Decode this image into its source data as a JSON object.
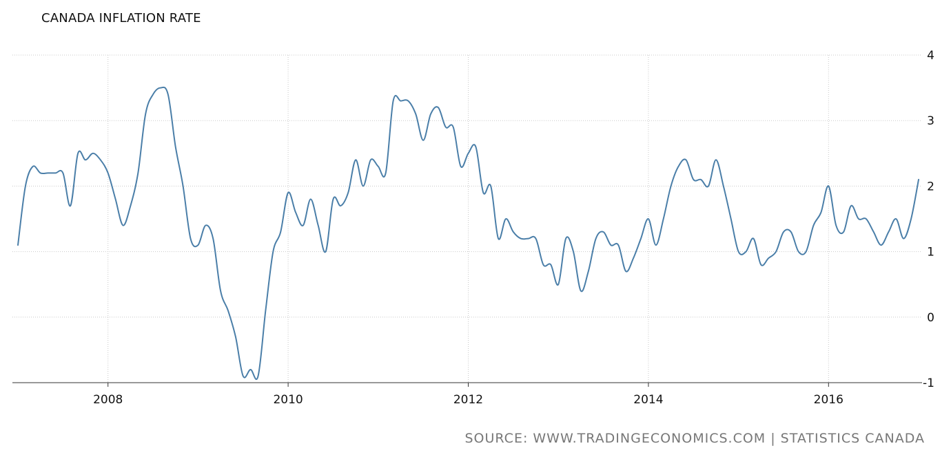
{
  "header": {
    "title": "CANADA INFLATION RATE"
  },
  "footer": {
    "source": "SOURCE: WWW.TRADINGECONOMICS.COM | STATISTICS CANADA"
  },
  "colors": {
    "line": "#4a7ea8",
    "grid": "#c8c8c8",
    "text": "#111111",
    "source": "#777777"
  },
  "chart_data": {
    "type": "line",
    "title": "CANADA INFLATION RATE",
    "xlabel": "",
    "ylabel": "",
    "x_ticks": [
      "2008",
      "2010",
      "2012",
      "2014",
      "2016"
    ],
    "y_ticks": [
      "4",
      "3",
      "2",
      "1",
      "0",
      "-1"
    ],
    "ylim": [
      -1,
      4
    ],
    "xlim": [
      "2007-01",
      "2017-01"
    ],
    "grid": true,
    "series": [
      {
        "name": "",
        "x": [
          "2007-01",
          "2007-02",
          "2007-03",
          "2007-04",
          "2007-05",
          "2007-06",
          "2007-07",
          "2007-08",
          "2007-09",
          "2007-10",
          "2007-11",
          "2007-12",
          "2008-01",
          "2008-02",
          "2008-03",
          "2008-04",
          "2008-05",
          "2008-06",
          "2008-07",
          "2008-08",
          "2008-09",
          "2008-10",
          "2008-11",
          "2008-12",
          "2009-01",
          "2009-02",
          "2009-03",
          "2009-04",
          "2009-05",
          "2009-06",
          "2009-07",
          "2009-08",
          "2009-09",
          "2009-10",
          "2009-11",
          "2009-12",
          "2010-01",
          "2010-02",
          "2010-03",
          "2010-04",
          "2010-05",
          "2010-06",
          "2010-07",
          "2010-08",
          "2010-09",
          "2010-10",
          "2010-11",
          "2010-12",
          "2011-01",
          "2011-02",
          "2011-03",
          "2011-04",
          "2011-05",
          "2011-06",
          "2011-07",
          "2011-08",
          "2011-09",
          "2011-10",
          "2011-11",
          "2011-12",
          "2012-01",
          "2012-02",
          "2012-03",
          "2012-04",
          "2012-05",
          "2012-06",
          "2012-07",
          "2012-08",
          "2012-09",
          "2012-10",
          "2012-11",
          "2012-12",
          "2013-01",
          "2013-02",
          "2013-03",
          "2013-04",
          "2013-05",
          "2013-06",
          "2013-07",
          "2013-08",
          "2013-09",
          "2013-10",
          "2013-11",
          "2013-12",
          "2014-01",
          "2014-02",
          "2014-03",
          "2014-04",
          "2014-05",
          "2014-06",
          "2014-07",
          "2014-08",
          "2014-09",
          "2014-10",
          "2014-11",
          "2014-12",
          "2015-01",
          "2015-02",
          "2015-03",
          "2015-04",
          "2015-05",
          "2015-06",
          "2015-07",
          "2015-08",
          "2015-09",
          "2015-10",
          "2015-11",
          "2015-12",
          "2016-01",
          "2016-02",
          "2016-03",
          "2016-04",
          "2016-05",
          "2016-06",
          "2016-07",
          "2016-08",
          "2016-09",
          "2016-10",
          "2016-11",
          "2016-12",
          "2017-01"
        ],
        "values": [
          1.1,
          2.0,
          2.3,
          2.2,
          2.2,
          2.2,
          2.2,
          1.7,
          2.5,
          2.4,
          2.5,
          2.4,
          2.2,
          1.8,
          1.4,
          1.7,
          2.2,
          3.1,
          3.4,
          3.5,
          3.4,
          2.6,
          2.0,
          1.2,
          1.1,
          1.4,
          1.2,
          0.4,
          0.1,
          -0.3,
          -0.9,
          -0.8,
          -0.9,
          0.1,
          1.0,
          1.3,
          1.9,
          1.6,
          1.4,
          1.8,
          1.4,
          1.0,
          1.8,
          1.7,
          1.9,
          2.4,
          2.0,
          2.4,
          2.3,
          2.2,
          3.3,
          3.3,
          3.3,
          3.1,
          2.7,
          3.1,
          3.2,
          2.9,
          2.9,
          2.3,
          2.5,
          2.6,
          1.9,
          2.0,
          1.2,
          1.5,
          1.3,
          1.2,
          1.2,
          1.2,
          0.8,
          0.8,
          0.5,
          1.2,
          1.0,
          0.4,
          0.7,
          1.2,
          1.3,
          1.1,
          1.1,
          0.7,
          0.9,
          1.2,
          1.5,
          1.1,
          1.5,
          2.0,
          2.3,
          2.4,
          2.1,
          2.1,
          2.0,
          2.4,
          2.0,
          1.5,
          1.0,
          1.0,
          1.2,
          0.8,
          0.9,
          1.0,
          1.3,
          1.3,
          1.0,
          1.0,
          1.4,
          1.6,
          2.0,
          1.4,
          1.3,
          1.7,
          1.5,
          1.5,
          1.3,
          1.1,
          1.3,
          1.5,
          1.2,
          1.5,
          2.1
        ]
      }
    ]
  }
}
